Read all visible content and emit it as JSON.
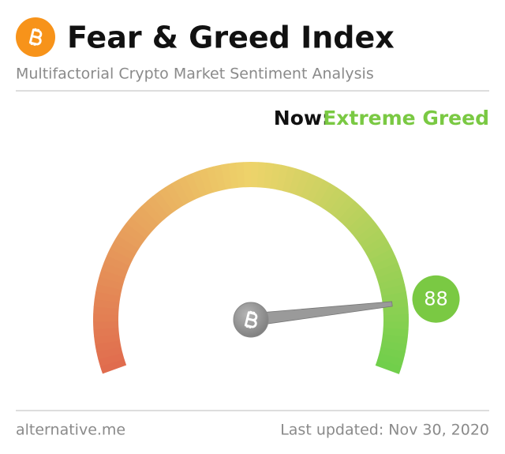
{
  "chart_data": {
    "type": "gauge",
    "title": "Fear & Greed Index",
    "subtitle": "Multifactorial Crypto Market Sentiment Analysis",
    "now_label": "Now:",
    "classification": "Extreme Greed",
    "classification_color": "#7ac943",
    "value": 88,
    "ylim": [
      0,
      100
    ],
    "colors": [
      "#e06b4e",
      "#eed36a",
      "#6fcf4b"
    ],
    "source": "alternative.me",
    "updated": "Last updated: Nov 30, 2020"
  }
}
